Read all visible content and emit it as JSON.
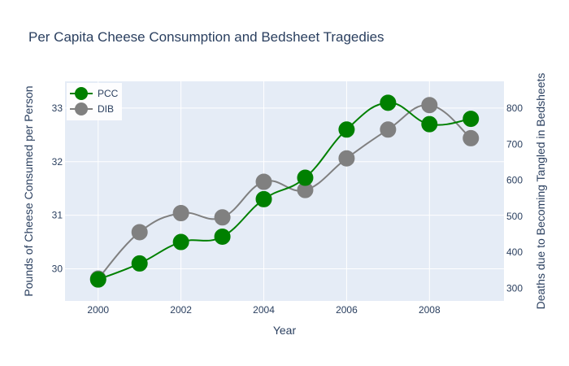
{
  "chart_data": {
    "type": "line",
    "title": "Per Capita Cheese Consumption and Bedsheet Tragedies",
    "xlabel": "Year",
    "ylabel": "Pounds of Cheese Consumed per Person",
    "ylabel_right": "Deaths due to Becoming Tangled in Bedsheets",
    "x": [
      2000,
      2001,
      2002,
      2003,
      2004,
      2005,
      2006,
      2007,
      2008,
      2009
    ],
    "xlim": [
      1999.2,
      2009.8
    ],
    "xticks": [
      "2000",
      "2002",
      "2004",
      "2006",
      "2008"
    ],
    "ylim_left": [
      29.4,
      33.5
    ],
    "yticks_left": [
      "30",
      "31",
      "32",
      "33"
    ],
    "ylim_right": [
      265,
      875
    ],
    "yticks_right": [
      "300",
      "400",
      "500",
      "600",
      "700",
      "800"
    ],
    "legend_position": "top-left",
    "series": [
      {
        "name": "PCC",
        "axis": "left",
        "color": "#008000",
        "values": [
          29.8,
          30.1,
          30.5,
          30.6,
          31.3,
          31.7,
          32.6,
          33.1,
          32.7,
          32.8
        ]
      },
      {
        "name": "DIB",
        "axis": "right",
        "color": "#808080",
        "values": [
          327,
          456,
          509,
          497,
          596,
          573,
          661,
          741,
          809,
          717
        ]
      }
    ]
  }
}
